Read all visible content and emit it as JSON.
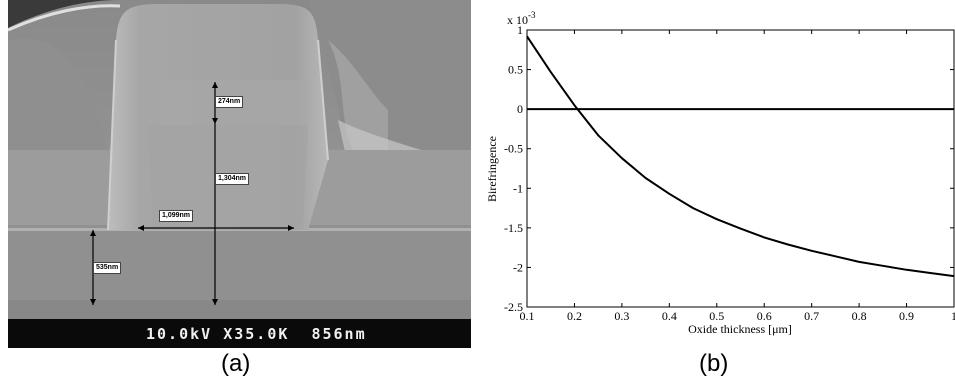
{
  "panel_a": {
    "caption": "(a)",
    "sem_footer": "10.0kV X35.0K  856nm",
    "measurements": {
      "top": "274nm",
      "height": "1,304nm",
      "width": "1,099nm",
      "bottom": "535nm"
    }
  },
  "panel_b": {
    "caption": "(b)"
  },
  "chart_data": {
    "type": "line",
    "xlabel": "Oxide thickness [μm]",
    "ylabel": "Birefringence",
    "y_multiplier": "x 10",
    "y_multiplier_exp": "-3",
    "xlim": [
      0.1,
      1
    ],
    "ylim": [
      -2.5,
      1
    ],
    "xticks": [
      "0.1",
      "0.2",
      "0.3",
      "0.4",
      "0.5",
      "0.6",
      "0.7",
      "0.8",
      "0.9",
      "1"
    ],
    "yticks": [
      "1",
      "0.5",
      "0",
      "-0.5",
      "-1",
      "-1.5",
      "-2",
      "-2.5"
    ],
    "grid": false,
    "series": [
      {
        "x": [
          0.1,
          0.15,
          0.2,
          0.25,
          0.3,
          0.35,
          0.4,
          0.45,
          0.5,
          0.55,
          0.6,
          0.65,
          0.7,
          0.75,
          0.8,
          0.85,
          0.9,
          0.95,
          1.0
        ],
        "y": [
          0.92,
          0.47,
          0.05,
          -0.33,
          -0.62,
          -0.87,
          -1.07,
          -1.25,
          -1.39,
          -1.51,
          -1.62,
          -1.71,
          -1.79,
          -1.86,
          -1.93,
          -1.98,
          -2.03,
          -2.07,
          -2.11
        ]
      },
      {
        "x": [
          0.1,
          1.0
        ],
        "y": [
          0,
          0
        ]
      }
    ]
  }
}
